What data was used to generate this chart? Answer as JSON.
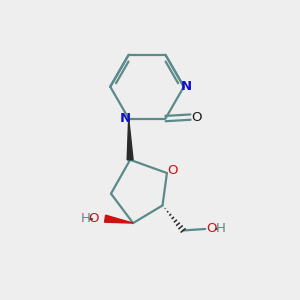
{
  "bg_color": "#eeeeee",
  "bond_color": "#5a8a8a",
  "bond_color_dark": "#2a2a2a",
  "n_color": "#1111cc",
  "o_color": "#cc1111",
  "ho_color": "#5a8a8a",
  "linewidth": 1.6,
  "figsize": [
    3.0,
    3.0
  ],
  "dpi": 100,
  "xlim": [
    0,
    10
  ],
  "ylim": [
    0,
    10
  ]
}
